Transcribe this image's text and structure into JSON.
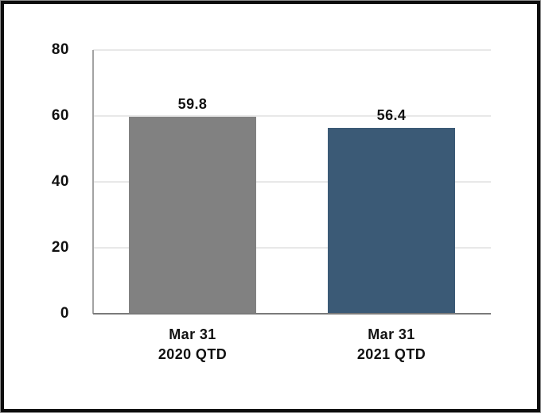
{
  "chart_data": {
    "type": "bar",
    "title": "",
    "xlabel": "",
    "ylabel": "",
    "categories": [
      {
        "line1": "Mar 31",
        "line2": "2020 QTD"
      },
      {
        "line1": "Mar 31",
        "line2": "2021 QTD"
      }
    ],
    "values": [
      59.8,
      56.4
    ],
    "value_labels": [
      "59.8",
      "56.4"
    ],
    "bar_colors": [
      "#818181",
      "#3B5A76"
    ],
    "yticks": [
      0,
      20,
      40,
      60,
      80
    ],
    "ylim": [
      0,
      80
    ],
    "grid": "horizontal",
    "legend": "none"
  },
  "colors": {
    "background": "#FFFFFF",
    "frame_border": "#0D0D0D",
    "gridline": "#E8E8E8",
    "y_axis_line": "#A3A3A3",
    "x_baseline": "#7A7A7A",
    "text": "#111111"
  }
}
